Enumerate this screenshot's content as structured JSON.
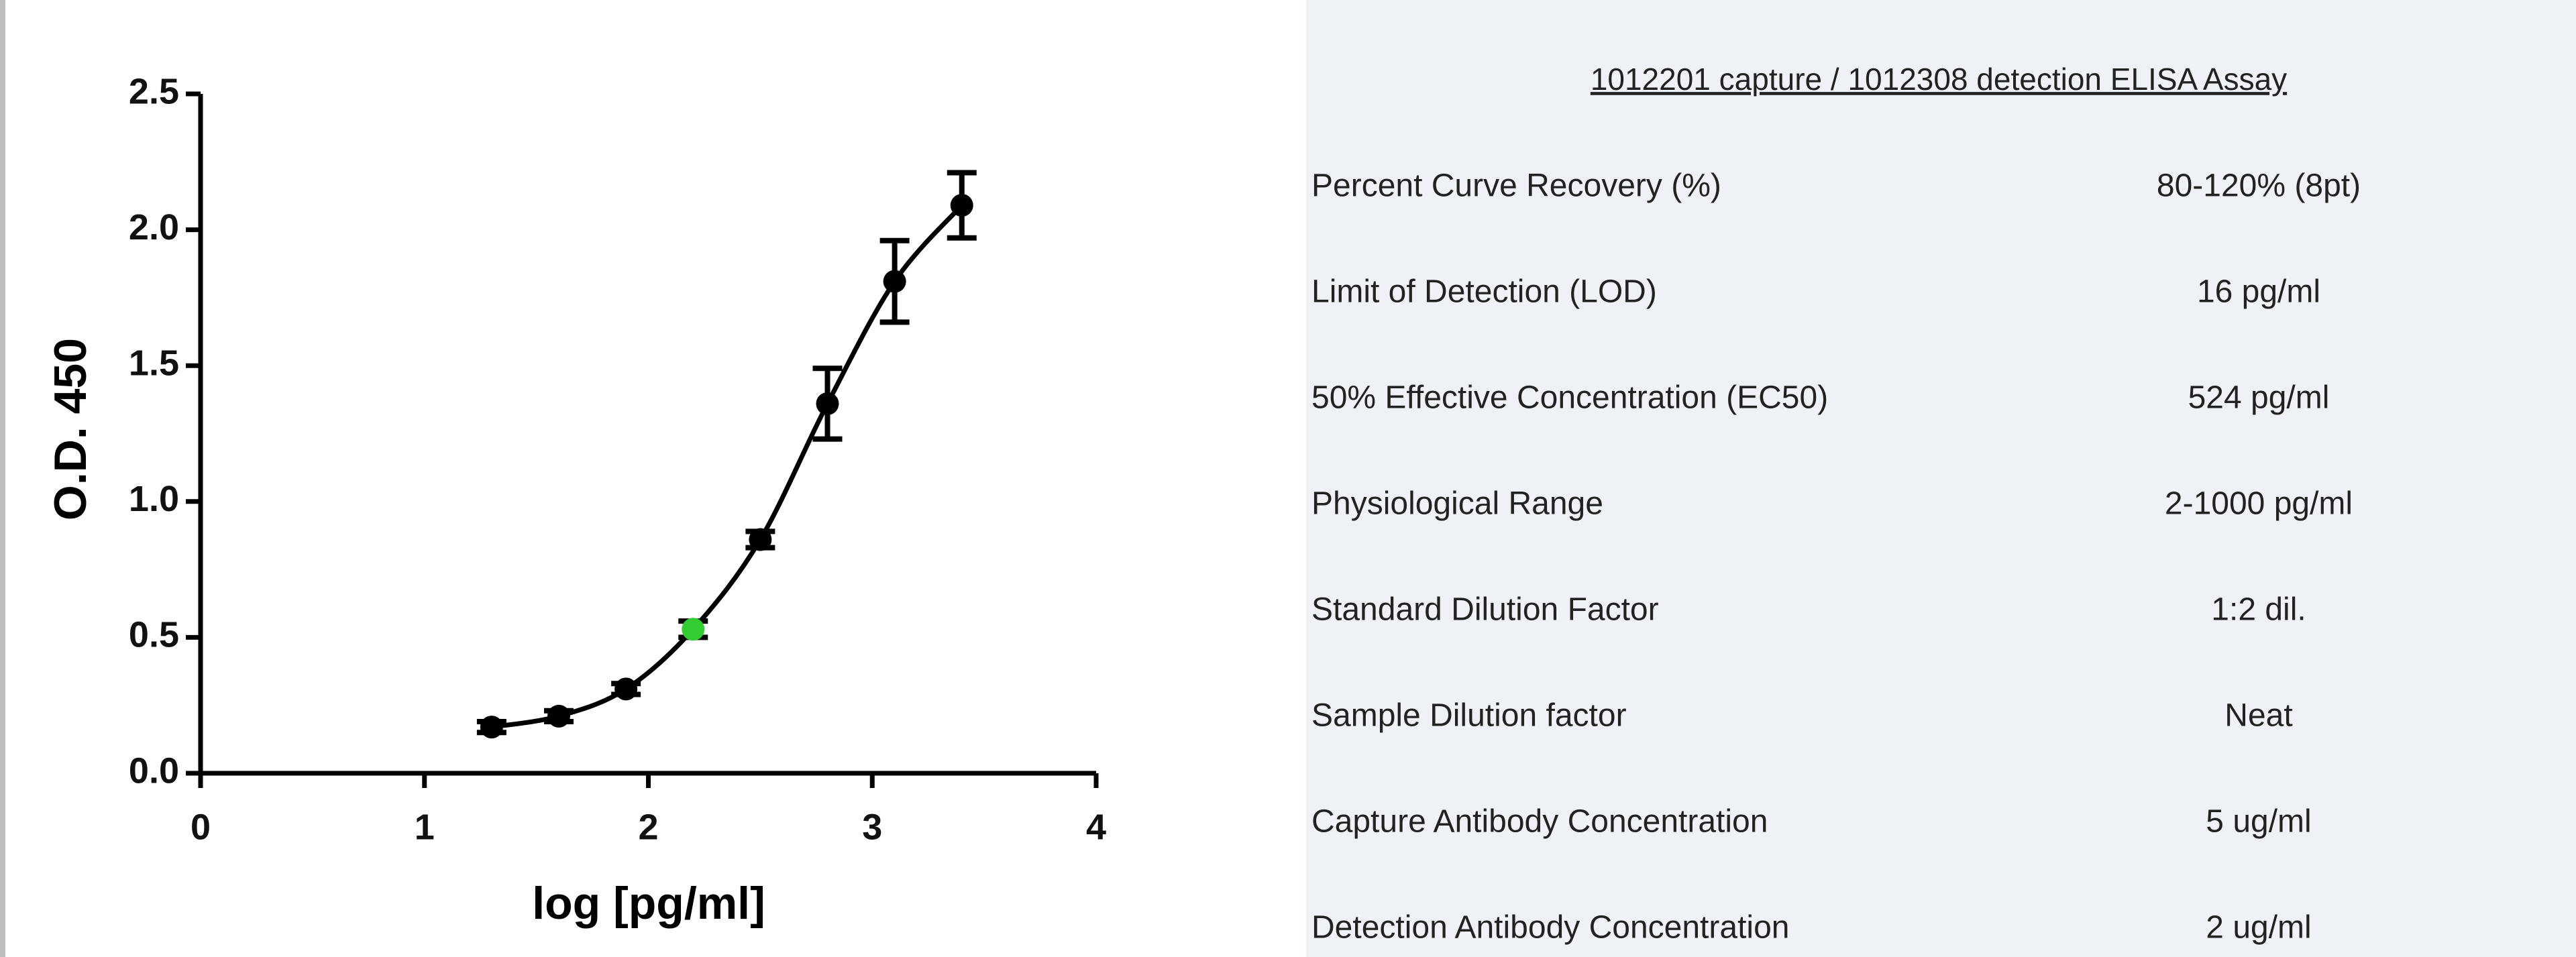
{
  "chart_data": {
    "type": "scatter",
    "xlabel": "log [pg/ml]",
    "ylabel": "O.D. 450",
    "x": [
      1.3,
      1.6,
      1.9,
      2.2,
      2.5,
      2.8,
      3.1,
      3.4
    ],
    "values": [
      0.17,
      0.21,
      0.31,
      0.53,
      0.86,
      1.36,
      1.81,
      2.09
    ],
    "errors": [
      0.02,
      0.02,
      0.02,
      0.03,
      0.03,
      0.13,
      0.15,
      0.12
    ],
    "colors": [
      "#000000",
      "#000000",
      "#000000",
      "#33cc33",
      "#000000",
      "#000000",
      "#000000",
      "#000000"
    ],
    "xlim": [
      0,
      4
    ],
    "xticks": [
      0,
      1,
      2,
      3,
      4
    ],
    "ylim": [
      0,
      2.5
    ],
    "yticks": [
      {
        "value": 0,
        "label": "0.0"
      },
      0.5,
      {
        "value": 1,
        "label": "1.0"
      },
      1.5,
      {
        "value": 2,
        "label": "2.0"
      },
      2.5
    ],
    "grid": false
  },
  "table": {
    "title": "1012201 capture / 1012308 detection ELISA Assay",
    "rows": [
      [
        "Percent Curve Recovery (%)",
        "80-120% (8pt)"
      ],
      [
        "Limit of Detection (LOD)",
        "16 pg/ml"
      ],
      [
        "50% Effective Concentration (EC50)",
        "524 pg/ml"
      ],
      [
        "Physiological Range",
        "2-1000 pg/ml"
      ],
      [
        "Standard Dilution Factor",
        "1:2 dil."
      ],
      [
        "Sample Dilution factor",
        "Neat"
      ],
      [
        "Capture Antibody Concentration",
        "5 ug/ml"
      ],
      [
        "Detection Antibody Concentration",
        "2 ug/ml"
      ]
    ]
  }
}
